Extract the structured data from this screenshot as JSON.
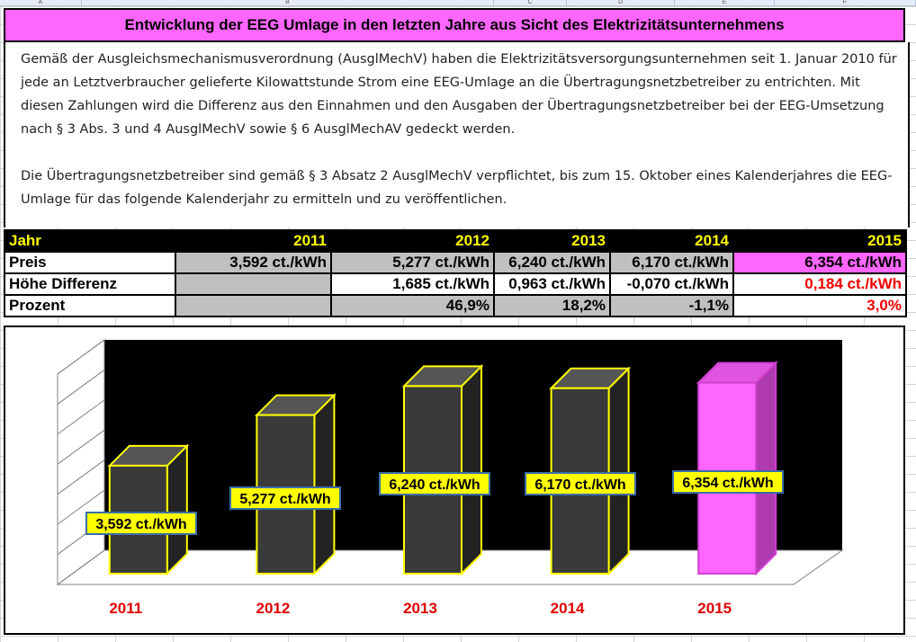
{
  "columns": [
    "A",
    "B",
    "C",
    "D",
    "E",
    "F"
  ],
  "title": "Entwicklung der EEG Umlage in den letzten Jahre aus Sicht des Elektrizitätsunternehmens",
  "description": {
    "paragraph1": "Gemäß der Ausgleichsmechanismusverordnung (AusglMechV) haben die Elektrizitätsversorgungsunternehmen seit 1. Januar 2010 für jede an Letztverbraucher gelieferte Kilowattstunde Strom eine EEG-Umlage an die Übertragungsnetzbetreiber zu entrichten. Mit diesen Zahlungen wird die Differenz aus den Einnahmen und den Ausgaben der Übertragungsnetzbetreiber bei der EEG-Umsetzung nach § 3 Abs. 3 und 4 AusglMechV sowie § 6 AusglMechAV gedeckt werden.",
    "paragraph2": "Die Übertragungsnetzbetreiber sind gemäß § 3 Absatz 2 AusglMechV verpflichtet, bis zum 15. Oktober eines Kalenderjahres die EEG-Umlage für das folgende Kalenderjahr zu ermitteln und zu veröffentlichen."
  },
  "table": {
    "header": [
      "Jahr",
      "2011",
      "2012",
      "2013",
      "2014",
      "2015"
    ],
    "rows": {
      "preis": [
        "Preis",
        "3,592 ct./kWh",
        "5,277 ct./kWh",
        "6,240 ct./kWh",
        "6,170 ct./kWh",
        "6,354 ct./kWh"
      ],
      "differenz": [
        "Höhe Differenz",
        "",
        "1,685 ct./kWh",
        "0,963 ct./kWh",
        "-0,070 ct./kWh",
        "0,184 ct./kWh"
      ],
      "prozent": [
        "Prozent",
        "",
        "46,9%",
        "18,2%",
        "-1,1%",
        "3,0%"
      ]
    }
  },
  "colors": {
    "title_bg": "#ff66ff",
    "highlight": "#ff66ff",
    "bar_fill": "#3a3a3a",
    "bar_outline": "#ffff00",
    "label_bg": "#ffff00",
    "label_border": "#3a6ea8",
    "axis_label": "#e00000",
    "red_text": "#ee0000"
  },
  "chart_data": {
    "type": "bar",
    "style": "3d",
    "categories": [
      "2011",
      "2012",
      "2013",
      "2014",
      "2015"
    ],
    "values": [
      3.592,
      5.277,
      6.24,
      6.17,
      6.354
    ],
    "data_labels": [
      "3,592 ct./kWh",
      "5,277 ct./kWh",
      "6,240 ct./kWh",
      "6,170 ct./kWh",
      "6,354 ct./kWh"
    ],
    "highlight_index": 4,
    "ylim": [
      0,
      7
    ],
    "grid": true,
    "title": "",
    "xlabel": "",
    "ylabel": ""
  }
}
